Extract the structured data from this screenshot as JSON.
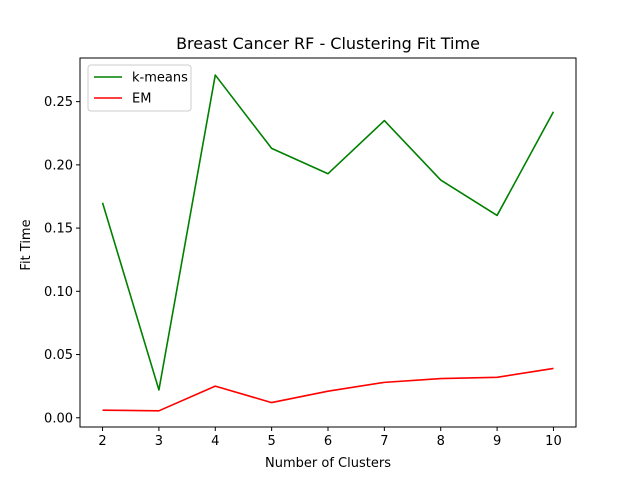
{
  "chart_data": {
    "type": "line",
    "title": "Breast Cancer RF - Clustering Fit Time",
    "xlabel": "Number of Clusters",
    "ylabel": "Fit Time",
    "x": [
      2,
      3,
      4,
      5,
      6,
      7,
      8,
      9,
      10
    ],
    "xticks": [
      "2",
      "3",
      "4",
      "5",
      "6",
      "7",
      "8",
      "9",
      "10"
    ],
    "yticks": [
      "0.00",
      "0.05",
      "0.10",
      "0.15",
      "0.20",
      "0.25"
    ],
    "xlim": [
      1.6,
      10.4
    ],
    "ylim": [
      -0.0073,
      0.2845
    ],
    "grid": false,
    "legend": {
      "placement": "top-left"
    },
    "series": [
      {
        "name": "k-means",
        "color": "#008000",
        "values": [
          0.17,
          0.022,
          0.271,
          0.213,
          0.193,
          0.235,
          0.188,
          0.16,
          0.242
        ]
      },
      {
        "name": "EM",
        "color": "#ff0000",
        "values": [
          0.006,
          0.0055,
          0.025,
          0.012,
          0.021,
          0.028,
          0.031,
          0.032,
          0.039
        ]
      }
    ]
  }
}
